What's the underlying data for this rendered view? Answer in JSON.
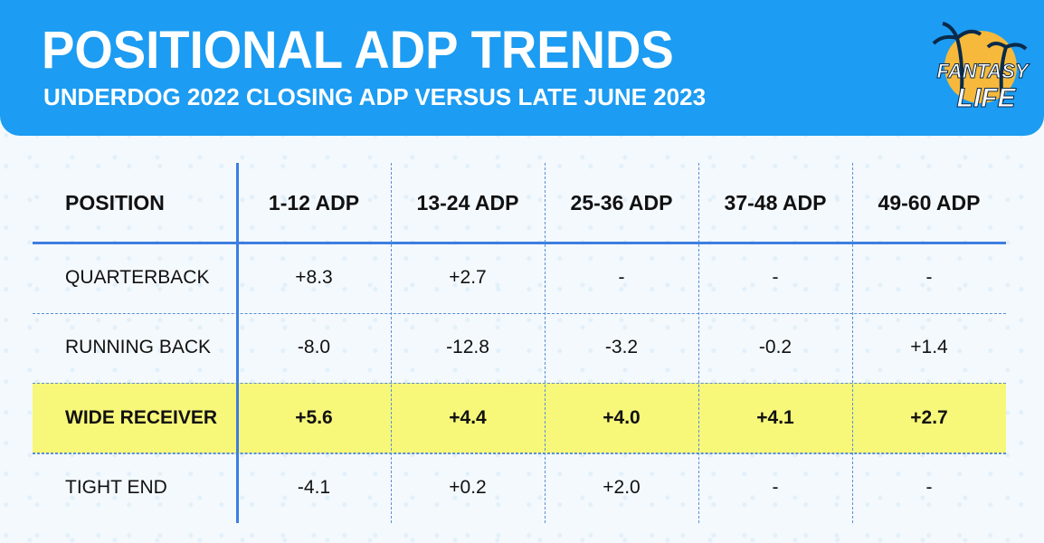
{
  "header": {
    "title": "POSITIONAL ADP TRENDS",
    "subtitle": "UNDERDOG 2022 CLOSING ADP VERSUS LATE JUNE 2023"
  },
  "logo": {
    "line1": "FANTASY",
    "line2": "LIFE"
  },
  "table": {
    "columns": [
      "POSITION",
      "1-12 ADP",
      "13-24 ADP",
      "25-36 ADP",
      "37-48 ADP",
      "49-60 ADP"
    ],
    "rows": [
      [
        "QUARTERBACK",
        "+8.3",
        "+2.7",
        "-",
        "-",
        "-"
      ],
      [
        "RUNNING BACK",
        "-8.0",
        "-12.8",
        "-3.2",
        "-0.2",
        "+1.4"
      ],
      [
        "WIDE RECEIVER",
        "+5.6",
        "+4.4",
        "+4.0",
        "+4.1",
        "+2.7"
      ],
      [
        "TIGHT END",
        "-4.1",
        "+0.2",
        "+2.0",
        "-",
        "-"
      ]
    ],
    "highlight_row": 2
  }
}
